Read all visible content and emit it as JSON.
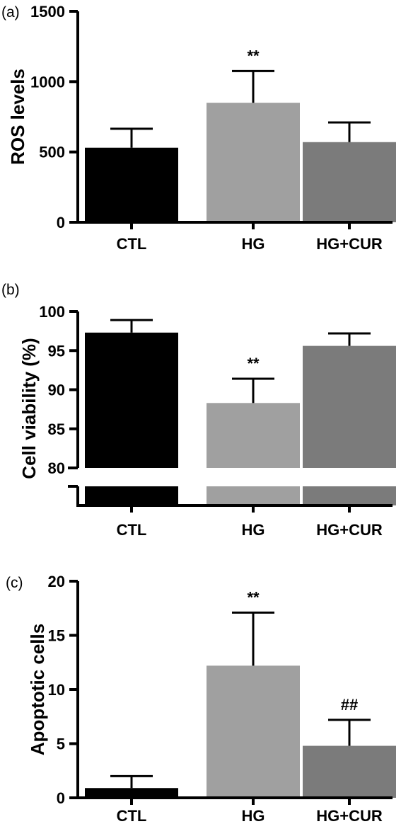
{
  "chart_data": [
    {
      "type": "bar",
      "panel": "(a)",
      "ylabel": "ROS levels",
      "xlabel": "",
      "categories": [
        "CTL",
        "HG",
        "HG+CUR"
      ],
      "values": [
        530,
        850,
        570
      ],
      "errors": [
        135,
        225,
        140
      ],
      "annotations": [
        "",
        "**",
        ""
      ],
      "colors": [
        "#000000",
        "#a0a0a0",
        "#7b7b7b"
      ],
      "ylim": [
        0,
        1500
      ],
      "yticks": [
        0,
        500,
        1000,
        1500
      ]
    },
    {
      "type": "bar",
      "panel": "(b)",
      "ylabel": "Cell viability (%)",
      "xlabel": "",
      "categories": [
        "CTL",
        "HG",
        "HG+CUR"
      ],
      "values": [
        97.3,
        88.3,
        95.6
      ],
      "errors": [
        1.6,
        3.1,
        1.6
      ],
      "annotations": [
        "",
        "**",
        ""
      ],
      "colors": [
        "#000000",
        "#a0a0a0",
        "#7b7b7b"
      ],
      "ylim": [
        80,
        100
      ],
      "yticks": [
        80,
        85,
        90,
        95,
        100
      ],
      "broken_axis": true
    },
    {
      "type": "bar",
      "panel": "(c)",
      "ylabel": "Apoptotic cells",
      "xlabel": "",
      "categories": [
        "CTL",
        "HG",
        "HG+CUR"
      ],
      "values": [
        0.9,
        12.2,
        4.8
      ],
      "errors": [
        1.1,
        4.9,
        2.4
      ],
      "annotations": [
        "",
        "**",
        "##"
      ],
      "colors": [
        "#000000",
        "#a0a0a0",
        "#7b7b7b"
      ],
      "ylim": [
        0,
        20
      ],
      "yticks": [
        0,
        5,
        10,
        15,
        20
      ]
    }
  ]
}
